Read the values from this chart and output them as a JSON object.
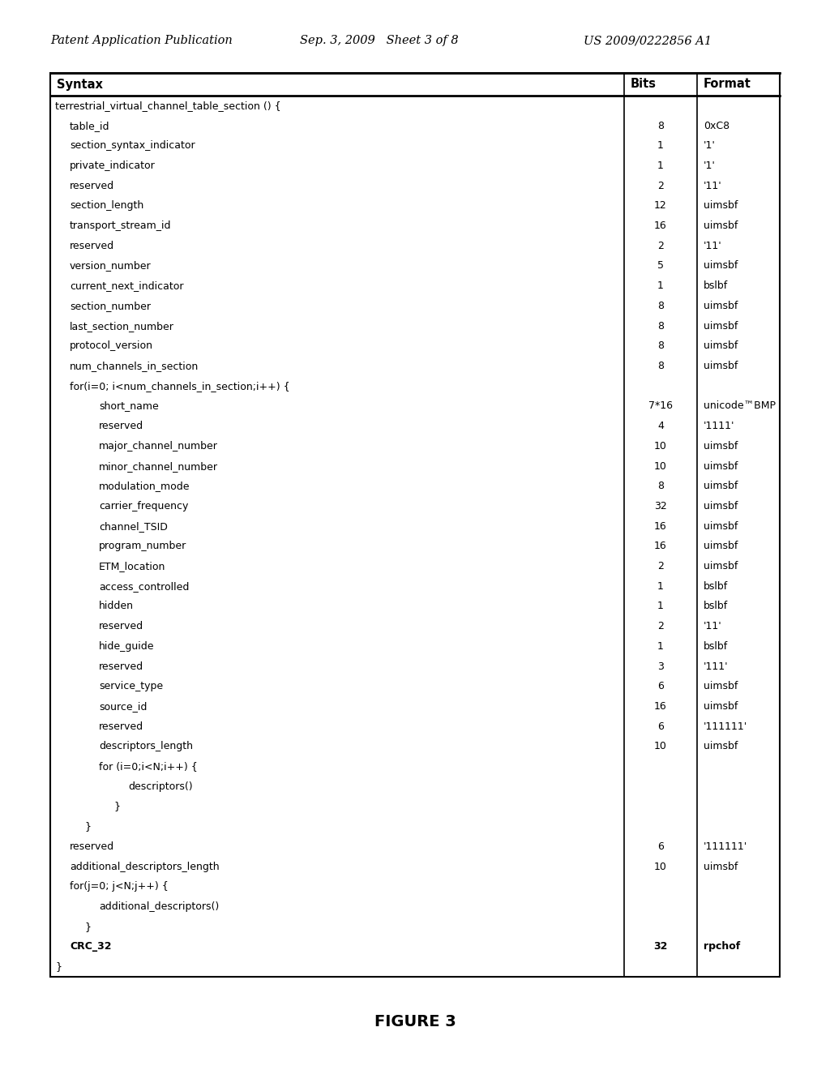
{
  "header_left": "Patent Application Publication",
  "header_mid": "Sep. 3, 2009   Sheet 3 of 8",
  "header_right": "US 2009/0222856 A1",
  "figure_label": "FIGURE 3",
  "table_header": [
    "Syntax",
    "Bits",
    "Format"
  ],
  "rows": [
    {
      "indent": 0,
      "syntax": "terrestrial_virtual_channel_table_section () {",
      "bits": "",
      "format": "",
      "bold": false
    },
    {
      "indent": 1,
      "syntax": "table_id",
      "bits": "8",
      "format": "0xC8",
      "bold": false
    },
    {
      "indent": 1,
      "syntax": "section_syntax_indicator",
      "bits": "1",
      "format": "'1'",
      "bold": false
    },
    {
      "indent": 1,
      "syntax": "private_indicator",
      "bits": "1",
      "format": "'1'",
      "bold": false
    },
    {
      "indent": 1,
      "syntax": "reserved",
      "bits": "2",
      "format": "'11'",
      "bold": false
    },
    {
      "indent": 1,
      "syntax": "section_length",
      "bits": "12",
      "format": "uimsbf",
      "bold": false
    },
    {
      "indent": 1,
      "syntax": "transport_stream_id",
      "bits": "16",
      "format": "uimsbf",
      "bold": false
    },
    {
      "indent": 1,
      "syntax": "reserved",
      "bits": "2",
      "format": "'11'",
      "bold": false
    },
    {
      "indent": 1,
      "syntax": "version_number",
      "bits": "5",
      "format": "uimsbf",
      "bold": false
    },
    {
      "indent": 1,
      "syntax": "current_next_indicator",
      "bits": "1",
      "format": "bslbf",
      "bold": false
    },
    {
      "indent": 1,
      "syntax": "section_number",
      "bits": "8",
      "format": "uimsbf",
      "bold": false
    },
    {
      "indent": 1,
      "syntax": "last_section_number",
      "bits": "8",
      "format": "uimsbf",
      "bold": false
    },
    {
      "indent": 1,
      "syntax": "protocol_version",
      "bits": "8",
      "format": "uimsbf",
      "bold": false
    },
    {
      "indent": 1,
      "syntax": "num_channels_in_section",
      "bits": "8",
      "format": "uimsbf",
      "bold": false
    },
    {
      "indent": 1,
      "syntax": "for(i=0; i<num_channels_in_section;i++) {",
      "bits": "",
      "format": "",
      "bold": false
    },
    {
      "indent": 3,
      "syntax": "short_name",
      "bits": "7*16",
      "format": "unicode™BMP",
      "bold": false
    },
    {
      "indent": 3,
      "syntax": "reserved",
      "bits": "4",
      "format": "'1111'",
      "bold": false
    },
    {
      "indent": 3,
      "syntax": "major_channel_number",
      "bits": "10",
      "format": "uimsbf",
      "bold": false
    },
    {
      "indent": 3,
      "syntax": "minor_channel_number",
      "bits": "10",
      "format": "uimsbf",
      "bold": false
    },
    {
      "indent": 3,
      "syntax": "modulation_mode",
      "bits": "8",
      "format": "uimsbf",
      "bold": false
    },
    {
      "indent": 3,
      "syntax": "carrier_frequency",
      "bits": "32",
      "format": "uimsbf",
      "bold": false
    },
    {
      "indent": 3,
      "syntax": "channel_TSID",
      "bits": "16",
      "format": "uimsbf",
      "bold": false
    },
    {
      "indent": 3,
      "syntax": "program_number",
      "bits": "16",
      "format": "uimsbf",
      "bold": false
    },
    {
      "indent": 3,
      "syntax": "ETM_location",
      "bits": "2",
      "format": "uimsbf",
      "bold": false
    },
    {
      "indent": 3,
      "syntax": "access_controlled",
      "bits": "1",
      "format": "bslbf",
      "bold": false
    },
    {
      "indent": 3,
      "syntax": "hidden",
      "bits": "1",
      "format": "bslbf",
      "bold": false
    },
    {
      "indent": 3,
      "syntax": "reserved",
      "bits": "2",
      "format": "'11'",
      "bold": false
    },
    {
      "indent": 3,
      "syntax": "hide_guide",
      "bits": "1",
      "format": "bslbf",
      "bold": false
    },
    {
      "indent": 3,
      "syntax": "reserved",
      "bits": "3",
      "format": "'111'",
      "bold": false
    },
    {
      "indent": 3,
      "syntax": "service_type",
      "bits": "6",
      "format": "uimsbf",
      "bold": false
    },
    {
      "indent": 3,
      "syntax": "source_id",
      "bits": "16",
      "format": "uimsbf",
      "bold": false
    },
    {
      "indent": 3,
      "syntax": "reserved",
      "bits": "6",
      "format": "'111111'",
      "bold": false
    },
    {
      "indent": 3,
      "syntax": "descriptors_length",
      "bits": "10",
      "format": "uimsbf",
      "bold": false
    },
    {
      "indent": 3,
      "syntax": "for (i=0;i<N;i++) {",
      "bits": "",
      "format": "",
      "bold": false
    },
    {
      "indent": 5,
      "syntax": "descriptors()",
      "bits": "",
      "format": "",
      "bold": false
    },
    {
      "indent": 4,
      "syntax": "}",
      "bits": "",
      "format": "",
      "bold": false
    },
    {
      "indent": 2,
      "syntax": "}",
      "bits": "",
      "format": "",
      "bold": false
    },
    {
      "indent": 1,
      "syntax": "reserved",
      "bits": "6",
      "format": "'111111'",
      "bold": false
    },
    {
      "indent": 1,
      "syntax": "additional_descriptors_length",
      "bits": "10",
      "format": "uimsbf",
      "bold": false
    },
    {
      "indent": 1,
      "syntax": "for(j=0; j<N;j++) {",
      "bits": "",
      "format": "",
      "bold": false
    },
    {
      "indent": 3,
      "syntax": "additional_descriptors()",
      "bits": "",
      "format": "",
      "bold": false
    },
    {
      "indent": 2,
      "syntax": "}",
      "bits": "",
      "format": "",
      "bold": false
    },
    {
      "indent": 1,
      "syntax": "CRC_32",
      "bits": "32",
      "format": "rpchof",
      "bold": true
    },
    {
      "indent": 0,
      "syntax": "}",
      "bits": "",
      "format": "",
      "bold": false
    }
  ],
  "bg_color": "#ffffff",
  "text_color": "#000000",
  "table_fontsize": 9.0,
  "figure_fontsize": 14,
  "header_fontsize": 10.5
}
